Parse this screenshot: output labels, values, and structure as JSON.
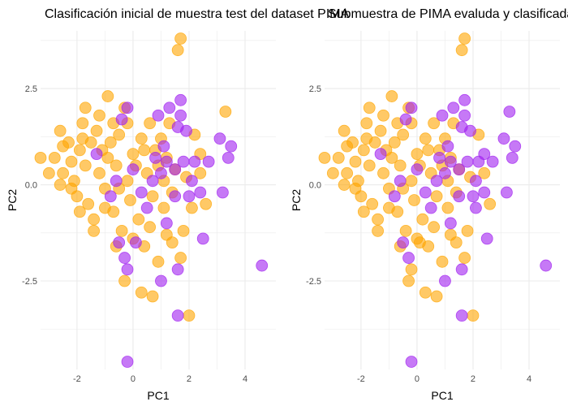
{
  "colors": {
    "class_a": "#ffa500",
    "class_b": "#a020f0",
    "grid": "#ebebeb"
  },
  "chart_data": [
    {
      "type": "scatter",
      "title": "Clasificación inicial de muestra test del dataset PIMA",
      "xlabel": "PC1",
      "ylabel": "PC2",
      "xlim": [
        -3.3,
        5.1
      ],
      "ylim": [
        -4.8,
        4.0
      ],
      "xticks": [
        -2,
        0,
        2,
        4
      ],
      "xtick_labels": [
        "-2",
        "0",
        "2",
        "4"
      ],
      "yticks": [
        -2.5,
        0.0,
        2.5
      ],
      "ytick_labels": [
        "-2.5",
        "0.0",
        "2.5"
      ],
      "grid": true,
      "legend": "none",
      "series": [
        {
          "color": "#ffa500",
          "points": [
            [
              -3.3,
              0.7
            ],
            [
              -3.0,
              0.3
            ],
            [
              -2.8,
              0.7
            ],
            [
              -2.6,
              1.4
            ],
            [
              -2.5,
              1.0
            ],
            [
              -2.5,
              0.3
            ],
            [
              -2.3,
              1.1
            ],
            [
              -2.2,
              0.6
            ],
            [
              -2.1,
              0.1
            ],
            [
              -2.0,
              -0.3
            ],
            [
              -1.9,
              0.9
            ],
            [
              -1.8,
              1.6
            ],
            [
              -1.7,
              0.5
            ],
            [
              -1.6,
              -0.5
            ],
            [
              -1.5,
              1.1
            ],
            [
              -1.4,
              -0.9
            ],
            [
              -1.7,
              2.0
            ],
            [
              -1.2,
              1.8
            ],
            [
              -1.1,
              0.9
            ],
            [
              -1.0,
              -0.1
            ],
            [
              -0.9,
              2.3
            ],
            [
              -0.8,
              1.1
            ],
            [
              -0.7,
              -0.7
            ],
            [
              -0.6,
              0.5
            ],
            [
              -0.5,
              1.3
            ],
            [
              -0.4,
              -1.2
            ],
            [
              -0.3,
              2.0
            ],
            [
              -0.2,
              0.1
            ],
            [
              -0.1,
              -0.4
            ],
            [
              0.0,
              0.8
            ],
            [
              0.2,
              -0.9
            ],
            [
              0.3,
              1.2
            ],
            [
              0.4,
              -1.6
            ],
            [
              0.5,
              0.3
            ],
            [
              0.6,
              1.6
            ],
            [
              0.7,
              -0.3
            ],
            [
              0.8,
              0.9
            ],
            [
              0.9,
              -2.0
            ],
            [
              1.0,
              1.2
            ],
            [
              1.1,
              -0.6
            ],
            [
              1.2,
              0.7
            ],
            [
              1.3,
              1.6
            ],
            [
              1.4,
              -1.5
            ],
            [
              1.5,
              0.4
            ],
            [
              1.6,
              3.5
            ],
            [
              1.7,
              3.8
            ],
            [
              1.8,
              -1.2
            ],
            [
              1.9,
              0.2
            ],
            [
              2.0,
              -3.4
            ],
            [
              2.2,
              1.3
            ],
            [
              2.4,
              0.8
            ],
            [
              2.6,
              -0.5
            ],
            [
              3.3,
              1.9
            ],
            [
              -1.4,
              -1.2
            ],
            [
              -1.0,
              -0.6
            ],
            [
              -0.7,
              1.6
            ],
            [
              -0.3,
              -2.5
            ],
            [
              0.3,
              -2.8
            ],
            [
              0.7,
              -2.9
            ],
            [
              -2.2,
              -0.1
            ],
            [
              -1.8,
              1.2
            ],
            [
              -1.2,
              0.3
            ],
            [
              -0.5,
              -0.1
            ],
            [
              0.1,
              0.5
            ],
            [
              0.6,
              -1.1
            ],
            [
              1.1,
              0.1
            ],
            [
              1.7,
              -1.9
            ],
            [
              2.4,
              0.3
            ],
            [
              -2.6,
              0.0
            ],
            [
              -1.9,
              -0.7
            ],
            [
              -1.3,
              1.4
            ],
            [
              -0.9,
              0.7
            ],
            [
              -0.2,
              1.6
            ],
            [
              0.4,
              0.9
            ],
            [
              0.9,
              0.5
            ],
            [
              1.4,
              -0.2
            ],
            [
              2.1,
              -0.6
            ],
            [
              -0.6,
              -1.6
            ],
            [
              0.0,
              -1.4
            ],
            [
              1.2,
              -1.3
            ]
          ]
        },
        {
          "color": "#a020f0",
          "points": [
            [
              -1.3,
              0.8
            ],
            [
              -0.8,
              -0.3
            ],
            [
              -0.4,
              1.7
            ],
            [
              -0.2,
              2.0
            ],
            [
              0.0,
              0.4
            ],
            [
              0.3,
              -0.2
            ],
            [
              0.5,
              -0.6
            ],
            [
              0.8,
              0.7
            ],
            [
              0.9,
              1.8
            ],
            [
              1.0,
              0.3
            ],
            [
              1.1,
              1.0
            ],
            [
              1.2,
              -1.0
            ],
            [
              1.3,
              2.0
            ],
            [
              1.5,
              0.4
            ],
            [
              1.6,
              1.5
            ],
            [
              1.7,
              2.2
            ],
            [
              1.8,
              0.6
            ],
            [
              1.9,
              1.4
            ],
            [
              2.0,
              -0.3
            ],
            [
              2.2,
              0.6
            ],
            [
              2.4,
              -0.2
            ],
            [
              2.5,
              -1.4
            ],
            [
              2.7,
              0.6
            ],
            [
              3.1,
              1.2
            ],
            [
              3.2,
              -0.2
            ],
            [
              3.4,
              0.7
            ],
            [
              3.5,
              1.0
            ],
            [
              4.6,
              -2.1
            ],
            [
              -0.5,
              -1.5
            ],
            [
              -0.3,
              -1.9
            ],
            [
              -0.2,
              -2.2
            ],
            [
              1.0,
              -2.5
            ],
            [
              1.6,
              -2.2
            ],
            [
              1.6,
              -3.4
            ],
            [
              -0.2,
              -4.6
            ],
            [
              1.7,
              1.8
            ],
            [
              0.7,
              0.1
            ],
            [
              1.5,
              -0.3
            ],
            [
              -0.6,
              0.1
            ],
            [
              2.1,
              0.1
            ],
            [
              1.2,
              0.6
            ],
            [
              0.1,
              -1.5
            ]
          ]
        }
      ]
    },
    {
      "type": "scatter",
      "title": "Submuestra de PIMA evaluda y clasificada",
      "xlabel": "PC1",
      "ylabel": "PC2",
      "xlim": [
        -3.3,
        5.1
      ],
      "ylim": [
        -4.8,
        4.0
      ],
      "xticks": [
        -2,
        0,
        2,
        4
      ],
      "xtick_labels": [
        "-2",
        "0",
        "2",
        "4"
      ],
      "yticks": [
        -2.5,
        0.0,
        2.5
      ],
      "ytick_labels": [
        "-2.5",
        "0.0",
        "2.5"
      ],
      "grid": true,
      "legend": "none",
      "series": [
        {
          "color": "#ffa500",
          "points": [
            [
              -3.3,
              0.7
            ],
            [
              -3.0,
              0.3
            ],
            [
              -2.8,
              0.7
            ],
            [
              -2.6,
              1.4
            ],
            [
              -2.5,
              1.0
            ],
            [
              -2.5,
              0.3
            ],
            [
              -2.3,
              1.1
            ],
            [
              -2.2,
              0.6
            ],
            [
              -2.1,
              0.1
            ],
            [
              -2.0,
              -0.3
            ],
            [
              -1.9,
              0.9
            ],
            [
              -1.8,
              1.6
            ],
            [
              -1.7,
              0.5
            ],
            [
              -1.6,
              -0.5
            ],
            [
              -1.5,
              1.1
            ],
            [
              -1.4,
              -0.9
            ],
            [
              -1.7,
              2.0
            ],
            [
              -1.2,
              1.8
            ],
            [
              -1.1,
              0.9
            ],
            [
              -1.0,
              -0.1
            ],
            [
              -0.9,
              2.3
            ],
            [
              -0.8,
              1.1
            ],
            [
              -0.7,
              -0.7
            ],
            [
              -0.6,
              0.5
            ],
            [
              -0.5,
              1.3
            ],
            [
              -0.4,
              -1.2
            ],
            [
              -0.3,
              2.0
            ],
            [
              -0.2,
              0.1
            ],
            [
              -0.1,
              -0.4
            ],
            [
              0.0,
              0.8
            ],
            [
              0.2,
              -0.9
            ],
            [
              0.3,
              1.2
            ],
            [
              0.4,
              -1.6
            ],
            [
              0.5,
              0.3
            ],
            [
              0.6,
              1.6
            ],
            [
              0.7,
              -0.3
            ],
            [
              0.8,
              0.9
            ],
            [
              0.9,
              -2.0
            ],
            [
              1.0,
              1.2
            ],
            [
              1.1,
              -0.6
            ],
            [
              1.2,
              0.7
            ],
            [
              1.3,
              1.6
            ],
            [
              1.4,
              -1.5
            ],
            [
              1.5,
              0.4
            ],
            [
              1.6,
              3.5
            ],
            [
              1.7,
              3.8
            ],
            [
              1.8,
              -1.2
            ],
            [
              1.9,
              0.2
            ],
            [
              2.0,
              -3.4
            ],
            [
              2.2,
              1.3
            ],
            [
              -1.4,
              -1.2
            ],
            [
              -1.0,
              -0.6
            ],
            [
              -0.7,
              1.6
            ],
            [
              -0.3,
              -2.5
            ],
            [
              0.3,
              -2.8
            ],
            [
              0.7,
              -2.9
            ],
            [
              -2.2,
              -0.1
            ],
            [
              -1.8,
              1.2
            ],
            [
              -1.2,
              0.3
            ],
            [
              -0.5,
              -0.1
            ],
            [
              0.1,
              0.5
            ],
            [
              0.6,
              -1.1
            ],
            [
              1.1,
              0.1
            ],
            [
              1.7,
              -1.9
            ],
            [
              -2.6,
              0.0
            ],
            [
              -1.9,
              -0.7
            ],
            [
              -1.3,
              1.4
            ],
            [
              -0.9,
              0.7
            ],
            [
              -0.2,
              1.6
            ],
            [
              0.4,
              0.9
            ],
            [
              0.9,
              0.5
            ],
            [
              1.4,
              -0.2
            ],
            [
              -0.6,
              -1.6
            ],
            [
              0.0,
              -1.4
            ],
            [
              1.2,
              -1.3
            ],
            [
              2.4,
              0.3
            ],
            [
              2.6,
              -0.5
            ],
            [
              -0.2,
              -2.2
            ],
            [
              0.1,
              -1.5
            ]
          ]
        },
        {
          "color": "#a020f0",
          "points": [
            [
              -1.3,
              0.8
            ],
            [
              -0.8,
              -0.3
            ],
            [
              -0.4,
              1.7
            ],
            [
              -0.2,
              2.0
            ],
            [
              0.0,
              0.4
            ],
            [
              0.3,
              -0.2
            ],
            [
              0.5,
              -0.6
            ],
            [
              0.8,
              0.7
            ],
            [
              0.9,
              1.8
            ],
            [
              1.0,
              0.3
            ],
            [
              1.1,
              1.0
            ],
            [
              1.2,
              -1.0
            ],
            [
              1.3,
              2.0
            ],
            [
              1.5,
              0.4
            ],
            [
              1.6,
              1.5
            ],
            [
              1.7,
              2.2
            ],
            [
              1.8,
              0.6
            ],
            [
              1.9,
              1.4
            ],
            [
              2.0,
              -0.3
            ],
            [
              2.2,
              0.6
            ],
            [
              2.4,
              -0.2
            ],
            [
              2.5,
              -1.4
            ],
            [
              2.7,
              0.6
            ],
            [
              3.1,
              1.2
            ],
            [
              3.2,
              -0.2
            ],
            [
              3.4,
              0.7
            ],
            [
              3.5,
              1.0
            ],
            [
              3.3,
              1.9
            ],
            [
              2.1,
              -0.6
            ],
            [
              4.6,
              -2.1
            ],
            [
              -0.5,
              -1.5
            ],
            [
              -0.3,
              -1.9
            ],
            [
              1.0,
              -2.5
            ],
            [
              1.6,
              -2.2
            ],
            [
              1.6,
              -3.4
            ],
            [
              -0.2,
              -4.6
            ],
            [
              1.7,
              1.8
            ],
            [
              0.7,
              0.1
            ],
            [
              1.5,
              -0.3
            ],
            [
              -0.6,
              0.1
            ],
            [
              2.1,
              0.1
            ],
            [
              1.2,
              0.6
            ],
            [
              2.4,
              0.8
            ]
          ]
        }
      ]
    }
  ]
}
